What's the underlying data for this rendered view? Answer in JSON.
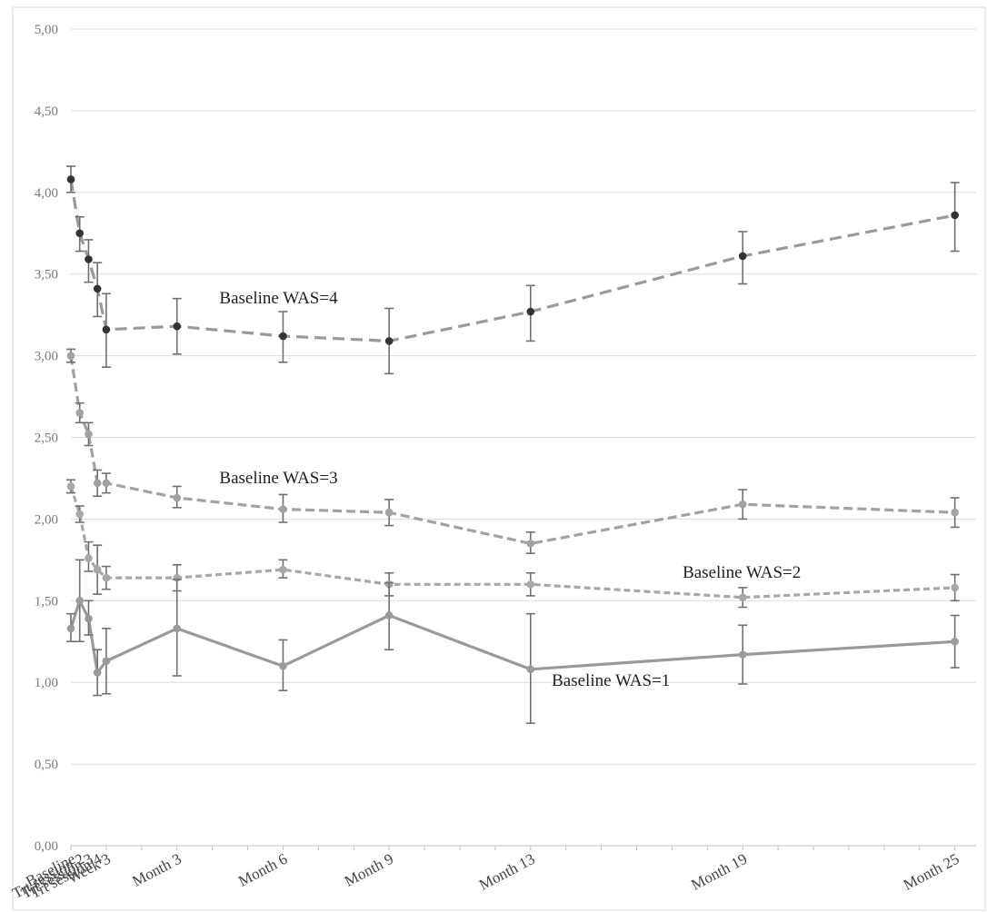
{
  "chart_data": {
    "type": "line",
    "title": "",
    "xlabel": "",
    "ylabel": "",
    "ylim": [
      0,
      5
    ],
    "yticks": [
      "0,00",
      "0,50",
      "1,00",
      "1,50",
      "2,00",
      "2,50",
      "3,00",
      "3,50",
      "4,00",
      "4,50",
      "5,00"
    ],
    "grid": true,
    "legend": "inline labels",
    "categories": [
      "Baseline",
      "Trt session 2",
      "Trt session 3",
      "Trt session 4",
      "Week 3",
      "Month 3",
      "Month 6",
      "Month 9",
      "Month 13",
      "Month 19",
      "Month 25"
    ],
    "x_months": [
      0,
      0.25,
      0.5,
      0.75,
      1,
      3,
      6,
      9,
      13,
      19,
      25
    ],
    "series": [
      {
        "name": "Baseline WAS=4",
        "style": "long-dash",
        "color": "#9a9a9a",
        "marker_color": "#333333",
        "values": [
          4.08,
          3.75,
          3.59,
          3.41,
          3.16,
          3.18,
          3.12,
          3.09,
          3.27,
          3.61,
          3.86
        ],
        "err_low": [
          4.0,
          3.64,
          3.45,
          3.24,
          2.93,
          3.01,
          2.96,
          2.89,
          3.09,
          3.44,
          3.64
        ],
        "err_high": [
          4.16,
          3.85,
          3.71,
          3.57,
          3.38,
          3.35,
          3.27,
          3.29,
          3.43,
          3.76,
          4.06
        ]
      },
      {
        "name": "Baseline WAS=3",
        "style": "dash",
        "color": "#a2a2a2",
        "marker_color": "#a2a2a2",
        "values": [
          3.0,
          2.65,
          2.52,
          2.22,
          2.22,
          2.13,
          2.06,
          2.04,
          1.85,
          2.09,
          2.04
        ],
        "err_low": [
          2.96,
          2.59,
          2.45,
          2.14,
          2.16,
          2.07,
          1.98,
          1.96,
          1.79,
          2.0,
          1.95
        ],
        "err_high": [
          3.04,
          2.71,
          2.59,
          2.3,
          2.28,
          2.2,
          2.15,
          2.12,
          1.92,
          2.18,
          2.13
        ]
      },
      {
        "name": "Baseline WAS=2",
        "style": "short-dash",
        "color": "#a8a8a8",
        "marker_color": "#a8a8a8",
        "values": [
          2.2,
          2.03,
          1.76,
          1.69,
          1.64,
          1.64,
          1.69,
          1.6,
          1.6,
          1.52,
          1.58
        ],
        "err_low": [
          2.16,
          1.98,
          1.68,
          1.54,
          1.57,
          1.56,
          1.64,
          1.53,
          1.53,
          1.46,
          1.5
        ],
        "err_high": [
          2.24,
          2.08,
          1.86,
          1.84,
          1.71,
          1.72,
          1.75,
          1.67,
          1.67,
          1.58,
          1.66
        ]
      },
      {
        "name": "Baseline WAS=1",
        "style": "solid",
        "color": "#9a9a9a",
        "marker_color": "#9a9a9a",
        "values": [
          1.33,
          1.5,
          1.39,
          1.06,
          1.13,
          1.33,
          1.1,
          1.41,
          1.08,
          1.17,
          1.25
        ],
        "err_low": [
          1.25,
          1.25,
          1.29,
          0.92,
          0.93,
          1.04,
          0.95,
          1.2,
          0.75,
          0.99,
          1.09
        ],
        "err_high": [
          1.42,
          1.75,
          1.5,
          1.2,
          1.33,
          1.63,
          1.26,
          1.61,
          1.42,
          1.35,
          1.41
        ]
      }
    ],
    "annotations": [
      {
        "text": "Baseline WAS=4",
        "x_month": 4.2,
        "y": 3.32
      },
      {
        "text": "Baseline WAS=3",
        "x_month": 4.2,
        "y": 2.22
      },
      {
        "text": "Baseline WAS=2",
        "x_month": 17.3,
        "y": 1.64
      },
      {
        "text": "Baseline WAS=1",
        "x_month": 13.6,
        "y": 0.98
      }
    ]
  }
}
